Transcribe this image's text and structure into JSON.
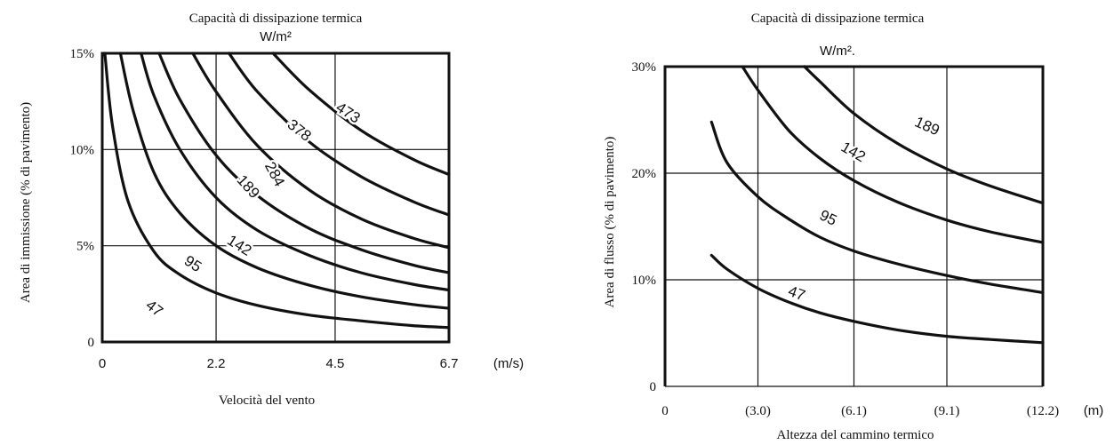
{
  "chart_data": [
    {
      "type": "line",
      "title": "Capacità di dissipazione termica",
      "subtitle": "W/m²",
      "xlabel": "Velocità del vento",
      "ylabel": "Area di immissione (% di pavimento)",
      "x_unit": "(m/s)",
      "x_ticks": [
        "0",
        "2.2",
        "4.5",
        "6.7"
      ],
      "y_ticks": [
        "0",
        "5%",
        "10%",
        "15%"
      ],
      "xlim": [
        0,
        6.7
      ],
      "ylim": [
        0,
        15
      ],
      "grid": true,
      "series": [
        {
          "name": "47",
          "x": [
            0.05,
            0.2,
            0.5,
            1.0,
            1.5,
            2.2,
            3.0,
            4.0,
            5.0,
            6.0,
            6.7
          ],
          "y": [
            15,
            11.2,
            7.3,
            4.7,
            3.5,
            2.55,
            1.9,
            1.4,
            1.1,
            0.85,
            0.75
          ]
        },
        {
          "name": "95",
          "x": [
            0.35,
            0.6,
            1.0,
            1.5,
            2.2,
            3.0,
            4.0,
            5.0,
            6.0,
            6.7
          ],
          "y": [
            15,
            12.0,
            8.8,
            6.7,
            5.0,
            3.85,
            2.95,
            2.35,
            1.95,
            1.75
          ]
        },
        {
          "name": "142",
          "x": [
            0.75,
            1.0,
            1.5,
            2.2,
            3.0,
            4.0,
            5.0,
            6.0,
            6.7
          ],
          "y": [
            15,
            12.8,
            10.0,
            7.5,
            5.8,
            4.5,
            3.6,
            3.0,
            2.7
          ]
        },
        {
          "name": "189",
          "x": [
            1.1,
            1.5,
            2.2,
            3.0,
            4.0,
            5.0,
            6.0,
            6.7
          ],
          "y": [
            15,
            12.6,
            9.7,
            7.6,
            5.9,
            4.8,
            4.0,
            3.6
          ]
        },
        {
          "name": "284",
          "x": [
            1.75,
            2.2,
            3.0,
            4.0,
            5.0,
            6.0,
            6.7
          ],
          "y": [
            15,
            13.0,
            10.2,
            7.9,
            6.4,
            5.4,
            4.9
          ]
        },
        {
          "name": "378",
          "x": [
            2.45,
            3.0,
            4.0,
            5.0,
            6.0,
            6.7
          ],
          "y": [
            15,
            13.0,
            10.4,
            8.6,
            7.3,
            6.6
          ]
        },
        {
          "name": "473",
          "x": [
            3.3,
            4.0,
            5.0,
            6.0,
            6.7
          ],
          "y": [
            15,
            13.1,
            11.0,
            9.5,
            8.7
          ]
        }
      ]
    },
    {
      "type": "line",
      "title": "Capacità di dissipazione termica",
      "subtitle": "W/m².",
      "xlabel": "Altezza del cammino termico",
      "ylabel": "Area di flusso (% di pavimento)",
      "x_unit": "(m)",
      "x_ticks": [
        "0",
        "(3.0)",
        "(6.1)",
        "(9.1)",
        "(12.2)"
      ],
      "y_ticks": [
        "0",
        "10%",
        "20%",
        "30%"
      ],
      "xlim": [
        0,
        12.2
      ],
      "ylim": [
        0,
        30
      ],
      "grid": true,
      "series": [
        {
          "name": "47",
          "x": [
            1.5,
            2.0,
            3.0,
            4.0,
            5.0,
            6.1,
            7.5,
            9.1,
            10.5,
            12.2
          ],
          "y": [
            12.3,
            11.0,
            9.2,
            7.9,
            6.9,
            6.1,
            5.3,
            4.7,
            4.4,
            4.1
          ]
        },
        {
          "name": "95",
          "x": [
            1.5,
            2.0,
            3.0,
            4.0,
            5.0,
            6.1,
            7.5,
            9.1,
            10.5,
            12.2
          ],
          "y": [
            24.8,
            21.0,
            17.8,
            15.7,
            14.0,
            12.7,
            11.5,
            10.4,
            9.6,
            8.8
          ]
        },
        {
          "name": "142",
          "x": [
            2.5,
            3.0,
            4.0,
            5.0,
            6.1,
            7.5,
            9.1,
            10.5,
            12.2
          ],
          "y": [
            30,
            27.8,
            24.0,
            21.4,
            19.3,
            17.3,
            15.6,
            14.5,
            13.5
          ]
        },
        {
          "name": "189",
          "x": [
            4.5,
            5.0,
            6.1,
            7.5,
            9.1,
            10.5,
            12.2
          ],
          "y": [
            30,
            28.6,
            25.6,
            22.8,
            20.4,
            18.8,
            17.2
          ]
        }
      ]
    }
  ]
}
